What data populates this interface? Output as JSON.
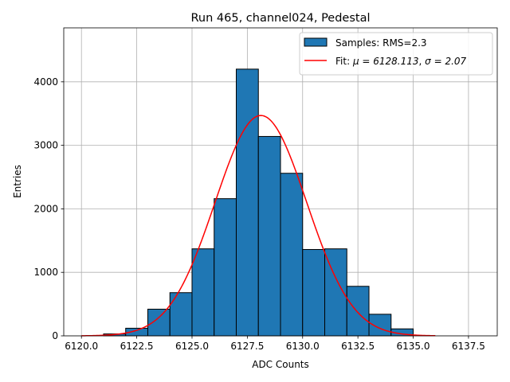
{
  "chart_data": {
    "type": "bar",
    "title": "Run 465, channel024, Pedestal",
    "xlabel": "ADC Counts",
    "ylabel": "Entries",
    "xlim": [
      6119.2,
      6138.8
    ],
    "ylim": [
      0,
      4850
    ],
    "grid": true,
    "legend_position": "top-right",
    "x_ticks": [
      6120.0,
      6122.5,
      6125.0,
      6127.5,
      6130.0,
      6132.5,
      6135.0,
      6137.5
    ],
    "x_tick_labels": [
      "6120.0",
      "6122.5",
      "6125.0",
      "6127.5",
      "6130.0",
      "6132.5",
      "6135.0",
      "6137.5"
    ],
    "y_ticks": [
      0,
      1000,
      2000,
      3000,
      4000
    ],
    "y_tick_labels": [
      "0",
      "1000",
      "2000",
      "3000",
      "4000"
    ],
    "histogram": {
      "name": "Samples: RMS=2.3",
      "color": "#1f77b4",
      "edge_color": "#000000",
      "bin_edges": [
        6120,
        6121,
        6122,
        6123,
        6124,
        6125,
        6126,
        6127,
        6128,
        6129,
        6130,
        6131,
        6132,
        6133,
        6134,
        6135,
        6136
      ],
      "counts": [
        0,
        30,
        120,
        420,
        680,
        1370,
        2160,
        4200,
        3140,
        2560,
        1360,
        1370,
        780,
        340,
        110,
        0
      ]
    },
    "fit": {
      "name": "Fit: μ = 6128.113, σ = 2.07",
      "legend_prefix": "Fit: ",
      "legend_mu": "μ = 6128.113",
      "legend_sigma": "σ = 2.07",
      "legend_sep": ", ",
      "color": "#ff0000",
      "mu": 6128.113,
      "sigma": 2.07,
      "amplitude": 3470,
      "x_range": [
        6120,
        6136
      ]
    }
  }
}
